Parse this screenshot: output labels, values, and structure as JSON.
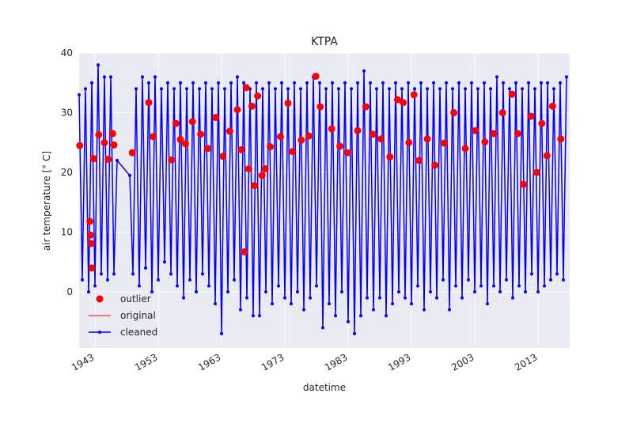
{
  "chart_data": {
    "type": "line",
    "title": "KTPA",
    "x_label": "datetime",
    "y_label": "air temperature [° C]",
    "xlim": [
      1940.5,
      2018
    ],
    "ylim": [
      -9.4,
      40
    ],
    "xticks": [
      1943,
      1953,
      1963,
      1973,
      1983,
      1993,
      2003,
      2013
    ],
    "yticks": [
      0,
      10,
      20,
      30,
      40
    ],
    "grid": true,
    "legend": "lower left",
    "x": [
      1940.5,
      1941,
      1941.5,
      1942,
      1942.5,
      1943,
      1943.5,
      1944,
      1944.5,
      1945,
      1945.5,
      1946,
      1946.5,
      1948.5,
      1949,
      1949.5,
      1950,
      1950.5,
      1951,
      1951.5,
      1952,
      1952.5,
      1953,
      1953.5,
      1954,
      1954.5,
      1955,
      1955.5,
      1956,
      1956.5,
      1957,
      1957.5,
      1958,
      1958.5,
      1959,
      1959.5,
      1960,
      1960.5,
      1961,
      1961.5,
      1962,
      1962.5,
      1963,
      1963.5,
      1964,
      1964.5,
      1965,
      1965.5,
      1966,
      1966.5,
      1967,
      1967.5,
      1968,
      1968.5,
      1969,
      1969.5,
      1970,
      1970.5,
      1971,
      1971.5,
      1972,
      1972.5,
      1973,
      1973.5,
      1974,
      1974.5,
      1975,
      1975.5,
      1976,
      1976.5,
      1977,
      1977.5,
      1978,
      1978.5,
      1979,
      1979.5,
      1980,
      1980.5,
      1981,
      1981.5,
      1982,
      1982.5,
      1983,
      1983.5,
      1984,
      1984.5,
      1985,
      1985.5,
      1986,
      1986.5,
      1987,
      1987.5,
      1988,
      1988.5,
      1989,
      1989.5,
      1990,
      1990.5,
      1991,
      1991.5,
      1992,
      1992.5,
      1993,
      1993.5,
      1994,
      1994.5,
      1995,
      1995.5,
      1996,
      1996.5,
      1997,
      1997.5,
      1998,
      1998.5,
      1999,
      1999.5,
      2000,
      2000.5,
      2001,
      2001.5,
      2002,
      2002.5,
      2003,
      2003.5,
      2004,
      2004.5,
      2005,
      2005.5,
      2006,
      2006.5,
      2007,
      2007.5,
      2008,
      2008.5,
      2009,
      2009.5,
      2010,
      2010.5,
      2011,
      2011.5,
      2012,
      2012.5,
      2013,
      2013.5,
      2014,
      2014.5,
      2015,
      2015.5,
      2016,
      2016.5,
      2017,
      2017.5
    ],
    "series": [
      {
        "name": "outlier",
        "color": "#ff0000",
        "marker": "circle",
        "x": [
          1940.6,
          1942.2,
          1942.3,
          1942.4,
          1942.5,
          1942.8,
          1943.6,
          1944.5,
          1945.1,
          1945.8,
          1946.0,
          1948.9,
          1951.5,
          1952.2,
          1955.1,
          1955.8,
          1956.5,
          1957.3,
          1958.4,
          1959.7,
          1960.8,
          1962.1,
          1963.2,
          1964.3,
          1965.5,
          1966.1,
          1966.6,
          1966.9,
          1967.3,
          1967.8,
          1968.2,
          1968.7,
          1969.4,
          1969.9,
          1970.7,
          1972.3,
          1973.5,
          1974.2,
          1975.6,
          1976.8,
          1977.9,
          1978.6,
          1980.4,
          1981.7,
          1982.9,
          1984.5,
          1985.8,
          1986.9,
          1988.2,
          1989.6,
          1990.8,
          1991.7,
          1992.6,
          1993.4,
          1994.2,
          1995.5,
          1996.7,
          1998.2,
          1999.7,
          2001.5,
          2003.1,
          2004.6,
          2006.0,
          2007.4,
          2008.9,
          2009.8,
          2010.7,
          2011.9,
          2012.8,
          2013.6,
          2014.4,
          2015.3,
          2016.6
        ],
        "values": [
          24.5,
          11.8,
          9.5,
          8.1,
          4.0,
          22.3,
          26.3,
          25.0,
          22.2,
          26.5,
          24.6,
          23.3,
          31.7,
          26.0,
          22.1,
          28.2,
          25.5,
          24.8,
          28.5,
          26.4,
          24.0,
          29.2,
          22.7,
          26.9,
          30.5,
          23.8,
          6.7,
          34.2,
          20.6,
          31.1,
          17.8,
          32.8,
          19.5,
          20.6,
          24.3,
          26.0,
          31.6,
          23.5,
          25.4,
          26.1,
          36.1,
          31.0,
          27.3,
          24.4,
          23.3,
          27.0,
          31.0,
          26.4,
          25.6,
          22.6,
          32.2,
          31.7,
          25.0,
          33.0,
          22.0,
          25.6,
          21.2,
          24.9,
          30.0,
          24.0,
          27.0,
          25.1,
          26.5,
          30.0,
          33.1,
          26.5,
          18.0,
          29.4,
          20.0,
          28.2,
          22.8,
          31.1,
          25.6
        ]
      },
      {
        "name": "original",
        "color": "#ff0000",
        "values": [
          33,
          2,
          34,
          0,
          35,
          1,
          38,
          3,
          36,
          2,
          36,
          3,
          22,
          19.5,
          3,
          34,
          1,
          36,
          4,
          35,
          0,
          36,
          2,
          34,
          5,
          35,
          3,
          34,
          1,
          35,
          -1,
          34,
          2,
          35,
          0,
          34,
          3,
          35,
          1,
          34,
          -2,
          35,
          -7,
          34,
          0,
          35,
          2,
          36,
          -3,
          35,
          -1,
          34,
          -4,
          35,
          -4,
          34,
          0,
          35,
          -2,
          34,
          1,
          35,
          -1,
          34,
          -2,
          35,
          0,
          34,
          -3,
          35,
          -1,
          36,
          1,
          35,
          -6,
          34,
          -2,
          35,
          -4,
          34,
          0,
          35,
          -5,
          34,
          -7,
          35,
          -4,
          37,
          -1,
          35,
          -3,
          34,
          -1,
          35,
          -4,
          34,
          -2,
          35,
          0,
          34,
          -1,
          35,
          -2,
          34,
          1,
          35,
          -3,
          34,
          0,
          35,
          -1,
          34,
          2,
          35,
          -3,
          34,
          1,
          35,
          -1,
          34,
          2,
          35,
          0,
          34,
          1,
          35,
          -2,
          34,
          1,
          36,
          0,
          35,
          2,
          34,
          -1,
          35,
          1,
          34,
          0,
          35,
          3,
          34,
          0,
          35,
          1,
          35,
          2,
          34,
          3,
          35,
          2,
          36
        ]
      },
      {
        "name": "cleaned",
        "color": "#0000ff",
        "marker": "circle",
        "values": [
          33,
          2,
          34,
          0,
          35,
          1,
          38,
          3,
          36,
          2,
          36,
          3,
          22,
          19.5,
          3,
          34,
          1,
          36,
          4,
          35,
          0,
          36,
          2,
          34,
          5,
          35,
          3,
          34,
          1,
          35,
          -1,
          34,
          2,
          35,
          0,
          34,
          3,
          35,
          1,
          34,
          -2,
          35,
          -7,
          34,
          0,
          35,
          2,
          36,
          -3,
          35,
          -1,
          34,
          -4,
          35,
          -4,
          34,
          0,
          35,
          -2,
          34,
          1,
          35,
          -1,
          34,
          -2,
          35,
          0,
          34,
          -3,
          35,
          -1,
          36,
          1,
          35,
          -6,
          34,
          -2,
          35,
          -4,
          34,
          0,
          35,
          -5,
          34,
          -7,
          35,
          -4,
          37,
          -1,
          35,
          -3,
          34,
          -1,
          35,
          -4,
          34,
          -2,
          35,
          0,
          34,
          -1,
          35,
          -2,
          34,
          1,
          35,
          -3,
          34,
          0,
          35,
          -1,
          34,
          2,
          35,
          -3,
          34,
          1,
          35,
          -1,
          34,
          2,
          35,
          0,
          34,
          1,
          35,
          -2,
          34,
          1,
          36,
          0,
          35,
          2,
          34,
          -1,
          35,
          1,
          34,
          0,
          35,
          3,
          34,
          0,
          35,
          1,
          35,
          2,
          34,
          3,
          35,
          2,
          36
        ]
      }
    ]
  }
}
